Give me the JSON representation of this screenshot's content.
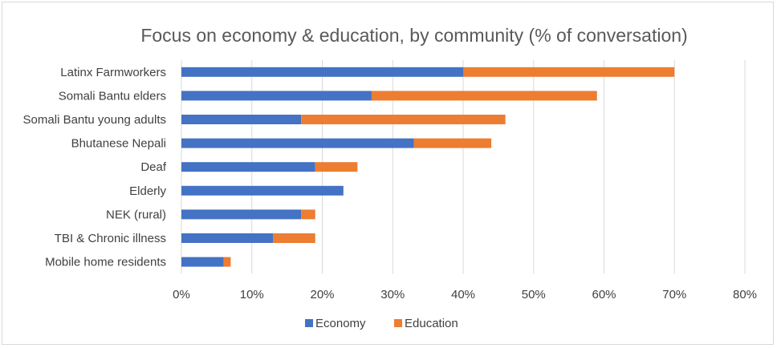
{
  "chart_data": {
    "type": "bar",
    "orientation": "horizontal",
    "stacked": true,
    "title": "Focus on economy & education, by community (% of conversation)",
    "categories": [
      "Latinx Farmworkers",
      "Somali Bantu elders",
      "Somali Bantu young adults",
      "Bhutanese Nepali",
      "Deaf",
      "Elderly",
      "NEK (rural)",
      "TBI & Chronic illness",
      "Mobile home residents"
    ],
    "series": [
      {
        "name": "Economy",
        "color": "#4472c4",
        "values": [
          40,
          27,
          17,
          33,
          19,
          23,
          17,
          13,
          6
        ]
      },
      {
        "name": "Education",
        "color": "#ed7d31",
        "values": [
          30,
          32,
          29,
          11,
          6,
          0,
          2,
          6,
          1
        ]
      }
    ],
    "xlim": [
      0,
      80
    ],
    "xticks": [
      "0%",
      "10%",
      "20%",
      "30%",
      "40%",
      "50%",
      "60%",
      "70%",
      "80%"
    ],
    "grid": true,
    "legend_position": "bottom"
  }
}
